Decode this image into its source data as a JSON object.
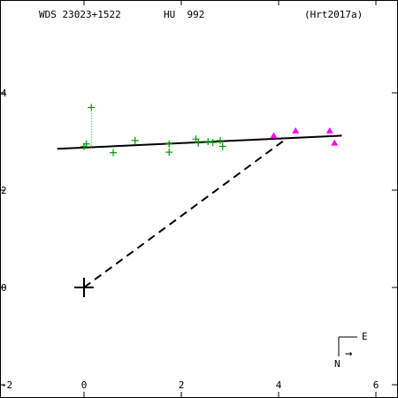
{
  "header": {
    "wds_id": "WDS 23023+1522",
    "discoverer": "HU  992",
    "reference": "(Hrt2017a)"
  },
  "compass": {
    "east_label": "E",
    "north_label": "N",
    "arrow_glyph": "→"
  },
  "chart_data": {
    "type": "scatter",
    "title": "",
    "xlabel": "",
    "ylabel": "",
    "xlim": [
      -2.0,
      6.1
    ],
    "ylim": [
      -2.0,
      5.8
    ],
    "x_ticks": [
      -2,
      0,
      2,
      4,
      6
    ],
    "y_ticks": [
      -2,
      0,
      2,
      4
    ],
    "x_tick_labels": [
      "-2",
      "0",
      "2",
      "4",
      "6"
    ],
    "y_tick_labels": [
      "-2",
      "0",
      "2",
      "4"
    ],
    "primary_star": [
      0,
      0
    ],
    "orbit_line": [
      [
        -0.55,
        2.85
      ],
      [
        5.3,
        3.12
      ]
    ],
    "node_line": [
      [
        0,
        0
      ],
      [
        4.15,
        3.05
      ]
    ],
    "series": [
      {
        "marker": "plus",
        "color": "#009900",
        "points": [
          [
            0.15,
            3.7
          ],
          [
            0.05,
            2.95
          ],
          [
            0.0,
            2.9
          ],
          [
            0.6,
            2.77
          ],
          [
            1.05,
            3.02
          ],
          [
            1.75,
            2.95
          ],
          [
            1.75,
            2.78
          ],
          [
            2.3,
            3.05
          ],
          [
            2.35,
            2.97
          ],
          [
            2.55,
            3.0
          ],
          [
            2.65,
            2.98
          ],
          [
            2.8,
            3.02
          ],
          [
            2.85,
            2.9
          ]
        ],
        "residual_to": [
          [
            0.15,
            2.87
          ],
          [
            0.05,
            2.87
          ],
          [
            0.0,
            2.87
          ],
          [
            0.6,
            2.9
          ],
          [
            1.05,
            2.92
          ],
          [
            1.75,
            2.95
          ],
          [
            1.75,
            2.95
          ],
          [
            2.3,
            2.98
          ],
          [
            2.35,
            2.98
          ],
          [
            2.55,
            2.99
          ],
          [
            2.65,
            3.0
          ],
          [
            2.8,
            3.0
          ],
          [
            2.85,
            3.01
          ]
        ]
      },
      {
        "marker": "triangle",
        "color": "#ff00ff",
        "points": [
          [
            3.9,
            3.12
          ],
          [
            4.35,
            3.22
          ],
          [
            5.05,
            3.22
          ],
          [
            5.15,
            2.97
          ]
        ]
      }
    ]
  }
}
